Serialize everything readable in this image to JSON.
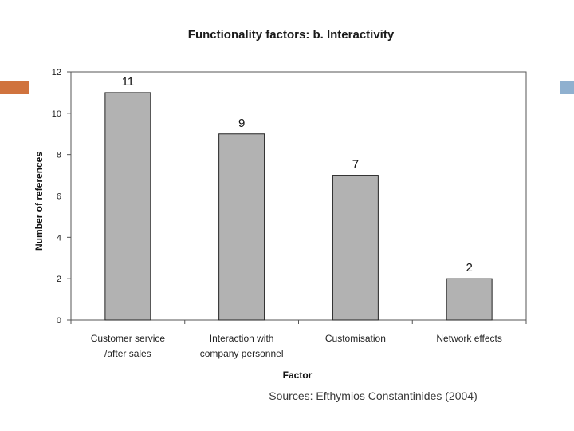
{
  "slide": {
    "accent_left_color": "#d0733e",
    "accent_right_color": "#8fb0cf",
    "source": "Sources: Efthymios Constantinides (2004)"
  },
  "chart_data": {
    "type": "bar",
    "title": "Functionality factors: b. Interactivity",
    "xlabel": "Factor",
    "ylabel": "Number of references",
    "categories": [
      [
        "Customer service",
        "/after sales"
      ],
      [
        "Interaction with",
        "company personnel"
      ],
      [
        "Customisation"
      ],
      [
        "Network effects"
      ]
    ],
    "values": [
      11,
      9,
      7,
      2
    ],
    "ylim": [
      0,
      12
    ],
    "yticks": [
      0,
      2,
      4,
      6,
      8,
      10,
      12
    ],
    "grid": false,
    "legend": "none",
    "bar_color": "#b2b2b2"
  }
}
